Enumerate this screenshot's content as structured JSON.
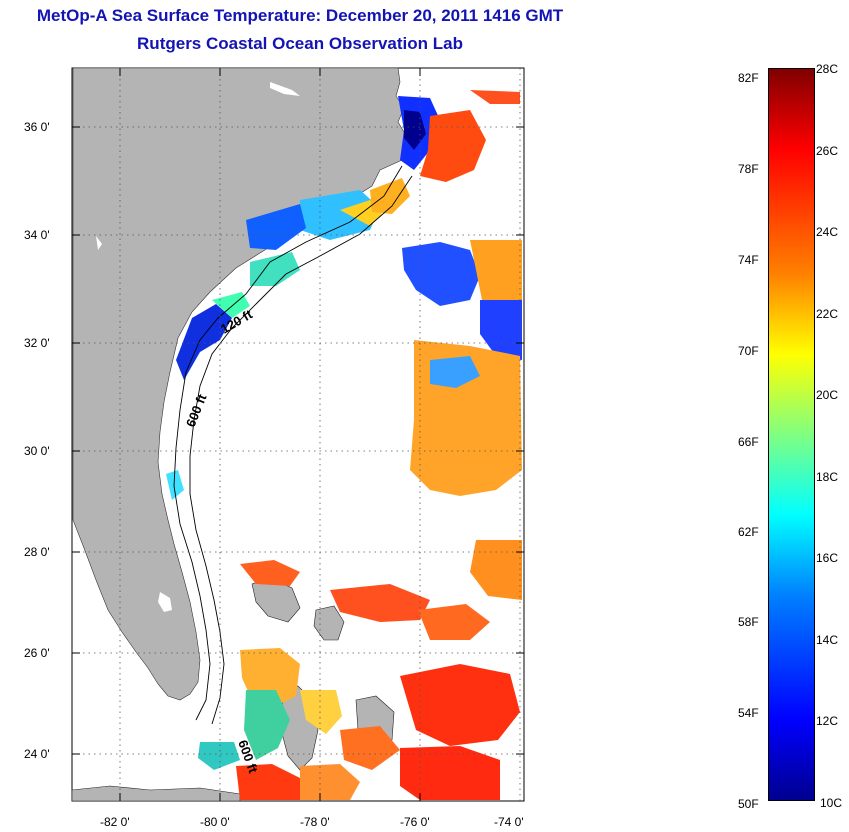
{
  "title": "MetOp-A Sea Surface Temperature:  December 20, 2011 1416 GMT",
  "subtitle": "Rutgers Coastal Ocean Observation Lab",
  "map": {
    "lat_labels": [
      "36 0'",
      "34 0'",
      "32 0'",
      "30 0'",
      "28 0'",
      "26 0'",
      "24 0'"
    ],
    "lon_labels": [
      "-82 0'",
      "-80 0'",
      "-78 0'",
      "-76 0'",
      "-74 0'"
    ],
    "contour_labels": [
      "120 ft",
      "600 ft",
      "600 ft"
    ],
    "colors": {
      "land": "#b4b4b4",
      "ocean": "#ffffff"
    }
  },
  "colorbar": {
    "fahrenheit_labels": [
      "82F",
      "78F",
      "74F",
      "70F",
      "66F",
      "62F",
      "58F",
      "54F",
      "50F"
    ],
    "celsius_labels": [
      "28C",
      "26C",
      "24C",
      "22C",
      "20C",
      "18C",
      "16C",
      "14C",
      "12C",
      "10C"
    ],
    "range_c": [
      10,
      28
    ],
    "colors": [
      "#00008f",
      "#0000ff",
      "#0080ff",
      "#00ffff",
      "#80ff80",
      "#ffff00",
      "#ff8000",
      "#ff0000",
      "#800000"
    ]
  }
}
